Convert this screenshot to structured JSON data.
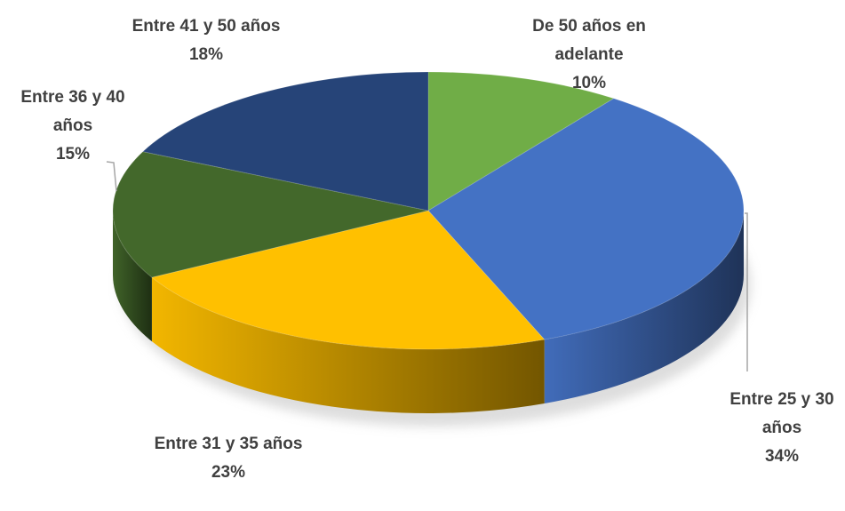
{
  "chart_data": {
    "type": "pie",
    "categories": [
      "De 50 años en adelante",
      "Entre 25 y 30 años",
      "Entre 31 y 35 años",
      "Entre 36 y 40 años",
      "Entre 41 y 50 años"
    ],
    "values": [
      10,
      34,
      23,
      15,
      18
    ],
    "value_labels": [
      "10%",
      "34%",
      "23%",
      "15%",
      "18%"
    ],
    "colors": [
      "#70ad47",
      "#4472c4",
      "#ffc000",
      "#43682b",
      "#264478"
    ]
  }
}
